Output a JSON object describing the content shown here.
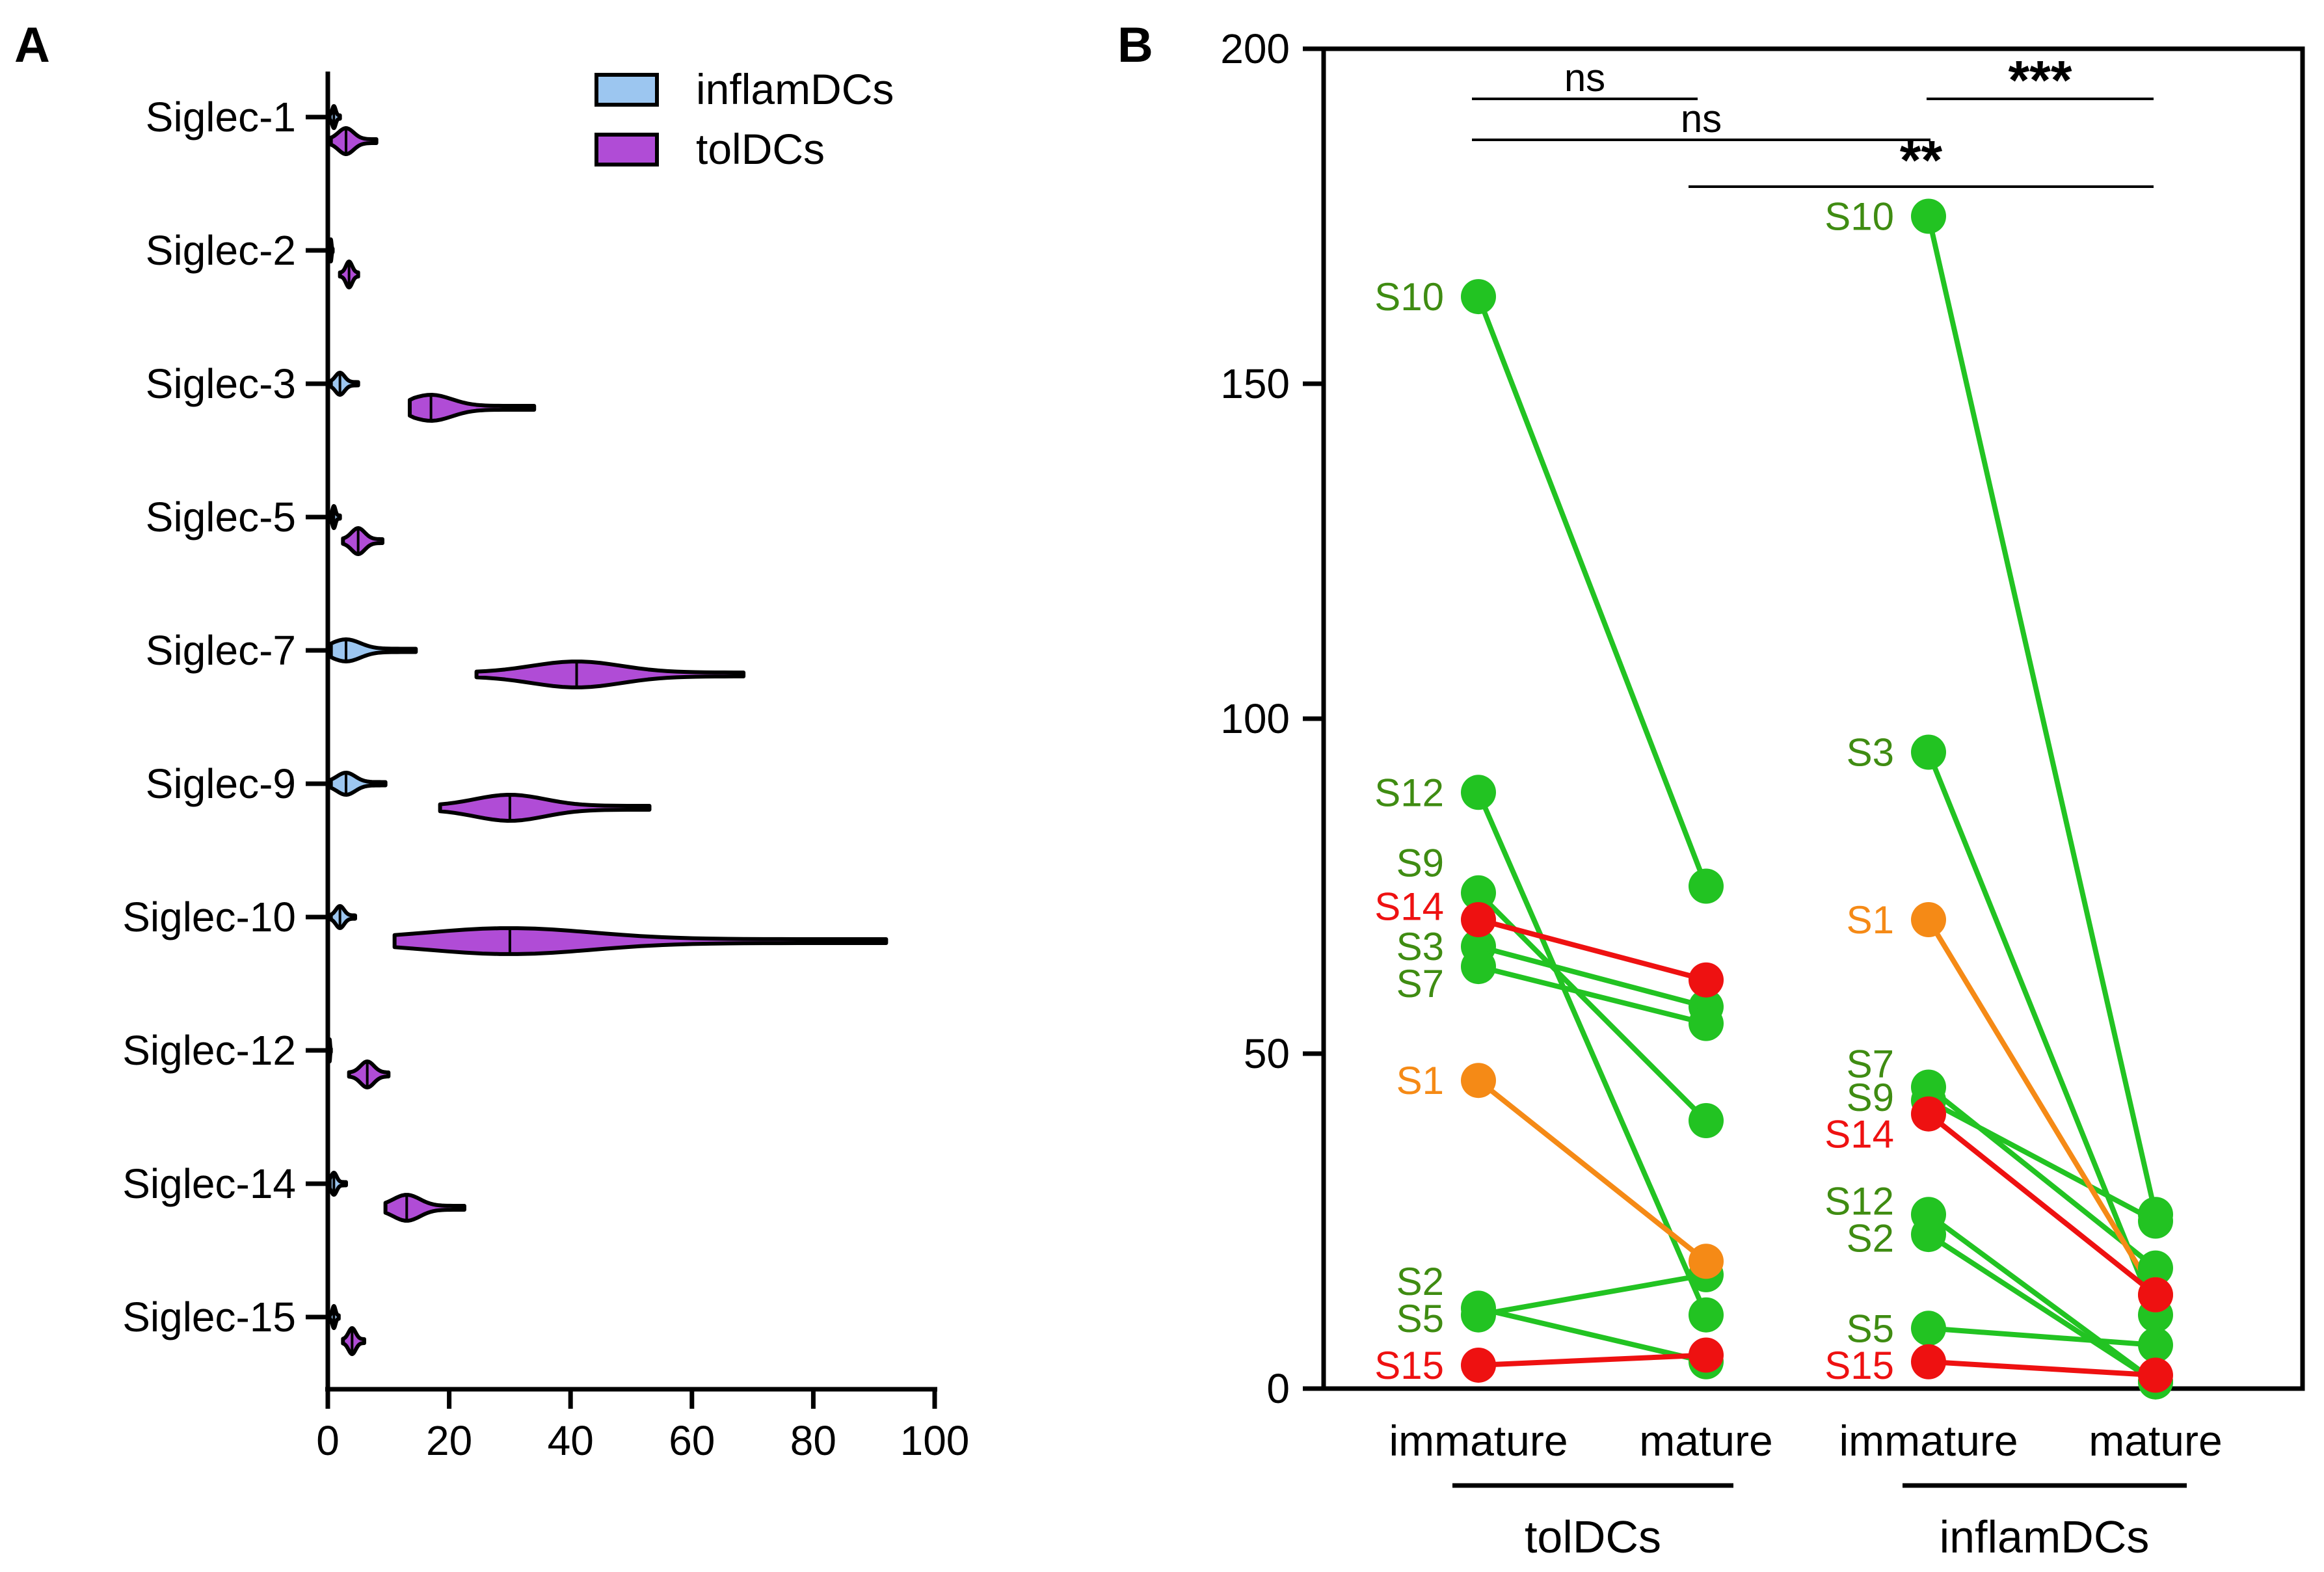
{
  "colors": {
    "inflam": "#9cc6f0",
    "tol": "#b04cd6",
    "green_point": "#22c322",
    "green_label": "#3f8c12",
    "red": "#ee1111",
    "orange": "#f58a16",
    "axis": "#000000"
  },
  "chart_data": [
    {
      "panel": "A",
      "type": "violin",
      "orientation": "horizontal",
      "xlim": [
        0,
        100
      ],
      "xticks": [
        "0",
        "20",
        "40",
        "60",
        "80",
        "100"
      ],
      "legend": {
        "position": "top-right",
        "entries": [
          "inflamDCs",
          "tolDCs"
        ]
      },
      "categories": [
        "Siglec-1",
        "Siglec-2",
        "Siglec-3",
        "Siglec-5",
        "Siglec-7",
        "Siglec-9",
        "Siglec-10",
        "Siglec-12",
        "Siglec-14",
        "Siglec-15"
      ],
      "series": [
        {
          "name": "inflamDCs",
          "ranges": [
            [
              0.3,
              2
            ],
            [
              0.2,
              0.8
            ],
            [
              0.5,
              5
            ],
            [
              0.5,
              2
            ],
            [
              0.5,
              14.5
            ],
            [
              0.5,
              9.5
            ],
            [
              0.5,
              4.5
            ],
            [
              0.1,
              0.5
            ],
            [
              0.3,
              3
            ],
            [
              0.3,
              1.8
            ]
          ],
          "medians": [
            1,
            0.5,
            2,
            1,
            3,
            3,
            2,
            0.3,
            1,
            1
          ]
        },
        {
          "name": "tolDCs",
          "ranges": [
            [
              0.5,
              8
            ],
            [
              2,
              5
            ],
            [
              13.5,
              34
            ],
            [
              2.5,
              9
            ],
            [
              24.5,
              68.5
            ],
            [
              18.5,
              53
            ],
            [
              11,
              92
            ],
            [
              3.5,
              10
            ],
            [
              9.5,
              22.5
            ],
            [
              2.5,
              6
            ]
          ],
          "medians": [
            3,
            3.5,
            17,
            5,
            41,
            30,
            30,
            6.5,
            13,
            4
          ]
        }
      ]
    },
    {
      "panel": "B",
      "type": "line",
      "ylim": [
        0,
        200
      ],
      "yticks": [
        "0",
        "50",
        "100",
        "150",
        "200"
      ],
      "categories": [
        "immature",
        "mature",
        "immature",
        "mature"
      ],
      "groups": [
        "tolDCs",
        "inflamDCs"
      ],
      "significance": [
        {
          "from": 0,
          "to": 1,
          "label": "ns"
        },
        {
          "from": 0,
          "to": 2,
          "label": "ns"
        },
        {
          "from": 1,
          "to": 3,
          "label": "**"
        },
        {
          "from": 2,
          "to": 3,
          "label": "***"
        }
      ],
      "series": [
        {
          "name": "S1",
          "color": "orange",
          "tol": [
            46,
            19
          ],
          "inflam": [
            70,
            14
          ]
        },
        {
          "name": "S2",
          "color": "green",
          "tol": [
            12,
            4
          ],
          "inflam": [
            23,
            1
          ]
        },
        {
          "name": "S3",
          "color": "green",
          "tol": [
            66,
            57
          ],
          "inflam": [
            95,
            11
          ]
        },
        {
          "name": "S5",
          "color": "green",
          "tol": [
            11,
            17
          ],
          "inflam": [
            9,
            6.5
          ]
        },
        {
          "name": "S7",
          "color": "green",
          "tol": [
            63,
            54.5
          ],
          "inflam": [
            45,
            18
          ]
        },
        {
          "name": "S9",
          "color": "green",
          "tol": [
            74,
            40
          ],
          "inflam": [
            43,
            25
          ]
        },
        {
          "name": "S10",
          "color": "green",
          "tol": [
            163,
            75
          ],
          "inflam": [
            175,
            26
          ]
        },
        {
          "name": "S12",
          "color": "green",
          "tol": [
            89,
            11
          ],
          "inflam": [
            26,
            1
          ]
        },
        {
          "name": "S14",
          "color": "red",
          "tol": [
            70,
            61
          ],
          "inflam": [
            41,
            14
          ]
        },
        {
          "name": "S15",
          "color": "red",
          "tol": [
            3.5,
            5
          ],
          "inflam": [
            4,
            2
          ]
        }
      ],
      "point_labels": {
        "tol": [
          {
            "text": "S10",
            "y": 163,
            "color": "green"
          },
          {
            "text": "S12",
            "y": 89,
            "color": "green"
          },
          {
            "text": "S9",
            "y": 78.5,
            "color": "green"
          },
          {
            "text": "S14",
            "y": 72,
            "color": "red"
          },
          {
            "text": "S3",
            "y": 66,
            "color": "green"
          },
          {
            "text": "S7",
            "y": 60.5,
            "color": "green"
          },
          {
            "text": "S1",
            "y": 46,
            "color": "orange"
          },
          {
            "text": "S2",
            "y": 16,
            "color": "green"
          },
          {
            "text": "S5",
            "y": 10.5,
            "color": "green"
          },
          {
            "text": "S15",
            "y": 3.5,
            "color": "red"
          }
        ],
        "inflam": [
          {
            "text": "S10",
            "y": 175,
            "color": "green"
          },
          {
            "text": "S3",
            "y": 95,
            "color": "green"
          },
          {
            "text": "S1",
            "y": 70,
            "color": "orange"
          },
          {
            "text": "S7",
            "y": 48.5,
            "color": "green"
          },
          {
            "text": "S9",
            "y": 43.5,
            "color": "green"
          },
          {
            "text": "S14",
            "y": 38,
            "color": "red"
          },
          {
            "text": "S12",
            "y": 28,
            "color": "green"
          },
          {
            "text": "S2",
            "y": 22.5,
            "color": "green"
          },
          {
            "text": "S5",
            "y": 9,
            "color": "green"
          },
          {
            "text": "S15",
            "y": 3.5,
            "color": "red"
          }
        ]
      }
    }
  ],
  "panel_a": {
    "label": "A"
  },
  "panel_b": {
    "label": "B"
  }
}
